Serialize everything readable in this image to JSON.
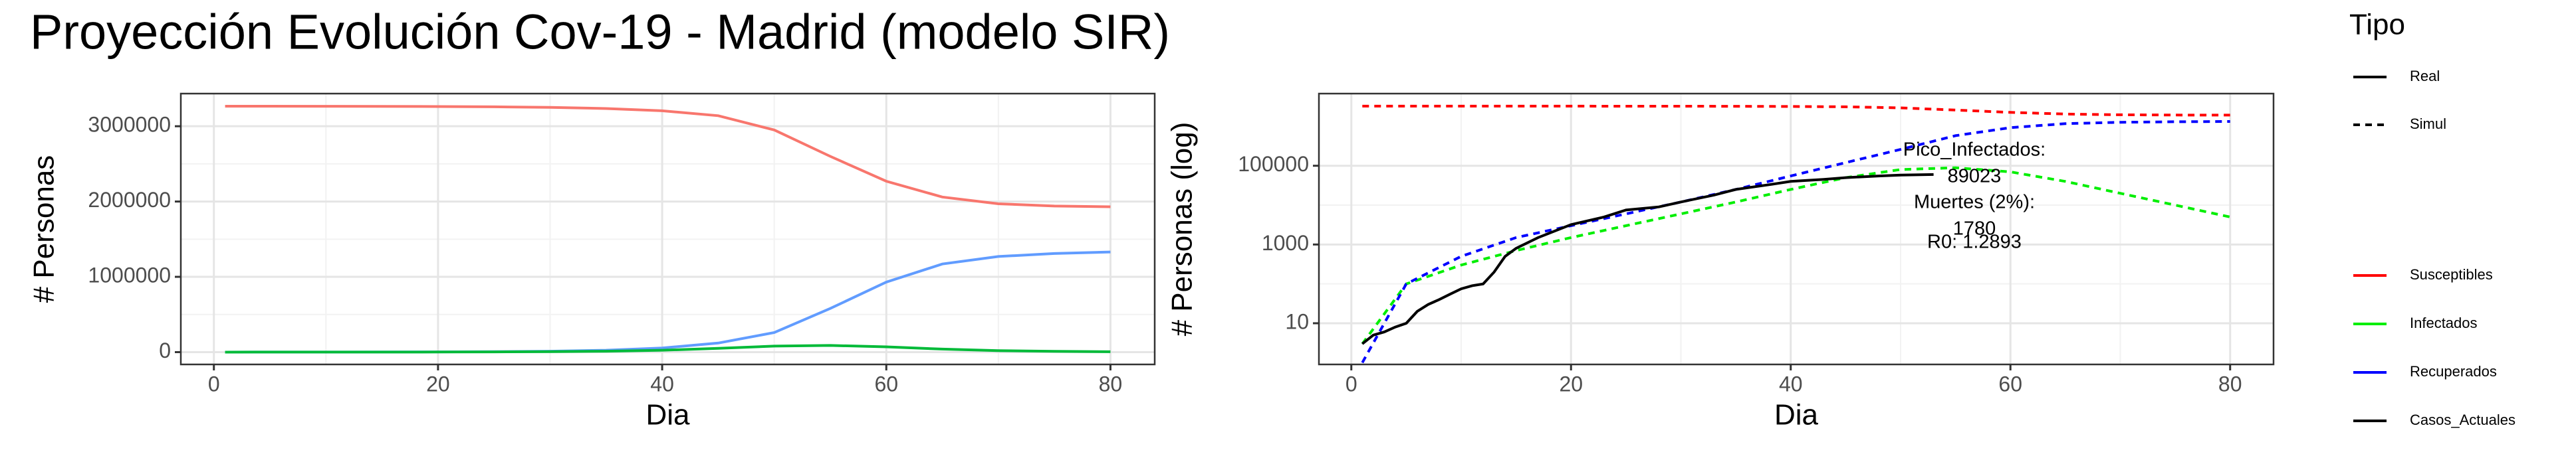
{
  "title": "Proyección Evolución Cov-19 - Madrid (modelo SIR)",
  "chart_data": [
    {
      "type": "line",
      "x_label": "Dia",
      "y_label": "# Personas",
      "x": [
        1,
        5,
        10,
        15,
        20,
        25,
        30,
        35,
        40,
        45,
        50,
        55,
        60,
        65,
        70,
        75,
        80
      ],
      "xlim": [
        -2.95,
        83.95
      ],
      "xticks": [
        0,
        20,
        40,
        60,
        80
      ],
      "ylim": [
        -163500,
        3433500
      ],
      "yticks": [
        0,
        1000000,
        2000000,
        3000000
      ],
      "grid": true,
      "series": [
        {
          "color": "#F8766D",
          "values": [
            3266000,
            3266000,
            3265000,
            3264000,
            3262000,
            3258000,
            3250000,
            3235000,
            3205000,
            3140000,
            2950000,
            2600000,
            2270000,
            2060000,
            1970000,
            1940000,
            1930000
          ]
        },
        {
          "color": "#619CFF",
          "values": [
            1,
            100,
            500,
            1500,
            3000,
            6000,
            12000,
            25000,
            55000,
            120000,
            260000,
            580000,
            930000,
            1170000,
            1270000,
            1310000,
            1330000
          ]
        },
        {
          "color": "#00BA38",
          "values": [
            3,
            100,
            300,
            700,
            1500,
            3000,
            6000,
            12000,
            25000,
            50000,
            80000,
            89000,
            70000,
            40000,
            20000,
            10000,
            5000
          ]
        }
      ]
    },
    {
      "type": "line",
      "log_y": true,
      "x_label": "Dia",
      "y_label": "# Personas (log)",
      "x": [
        1,
        5,
        10,
        15,
        20,
        25,
        30,
        35,
        40,
        45,
        50,
        55,
        60,
        65,
        70,
        75,
        80
      ],
      "xlim": [
        -2.95,
        83.95
      ],
      "xticks": [
        0,
        20,
        40,
        60,
        80
      ],
      "ylim": [
        0.9,
        6800000
      ],
      "yticks": [
        10,
        1000,
        100000
      ],
      "grid": true,
      "legend_title": "Tipo",
      "linetypes": [
        {
          "name": "Real",
          "dashed": false
        },
        {
          "name": "Simul",
          "dashed": true
        }
      ],
      "series": [
        {
          "name": "Susceptibles",
          "color": "#ff0000",
          "dashed": true,
          "values": [
            3266000,
            3266000,
            3265000,
            3264000,
            3262000,
            3258000,
            3250000,
            3235000,
            3205000,
            3140000,
            2950000,
            2600000,
            2270000,
            2060000,
            1970000,
            1940000,
            1930000
          ]
        },
        {
          "name": "Infectados",
          "color": "#00ee00",
          "dashed": true,
          "values": [
            3,
            100,
            300,
            700,
            1500,
            3000,
            6000,
            12000,
            25000,
            50000,
            80000,
            89000,
            70000,
            40000,
            20000,
            10000,
            5000
          ]
        },
        {
          "name": "Recuperados",
          "color": "#0000ff",
          "dashed": true,
          "values": [
            1,
            100,
            500,
            1500,
            3000,
            6000,
            12000,
            25000,
            55000,
            120000,
            260000,
            580000,
            930000,
            1170000,
            1270000,
            1310000,
            1330000
          ]
        },
        {
          "name": "Casos_Actuales",
          "color": "#000000",
          "dashed": false,
          "x": [
            1,
            2,
            3,
            4,
            5,
            6,
            7,
            8,
            9,
            10,
            11,
            12,
            13,
            14,
            15,
            17,
            20,
            23,
            25,
            28,
            30,
            33,
            35,
            38,
            40,
            43,
            45,
            48,
            50,
            53
          ],
          "values": [
            3,
            5,
            6,
            8,
            10,
            20,
            30,
            40,
            55,
            75,
            90,
            100,
            200,
            500,
            800,
            1500,
            3200,
            5000,
            7500,
            9000,
            12000,
            18000,
            25000,
            33000,
            40000,
            45000,
            50000,
            55000,
            58000,
            60000
          ]
        }
      ],
      "annotation": [
        "Pico_Infectados:",
        "89023",
        "Muertes (2%):",
        "1780",
        "R0: 1.2893"
      ]
    }
  ]
}
